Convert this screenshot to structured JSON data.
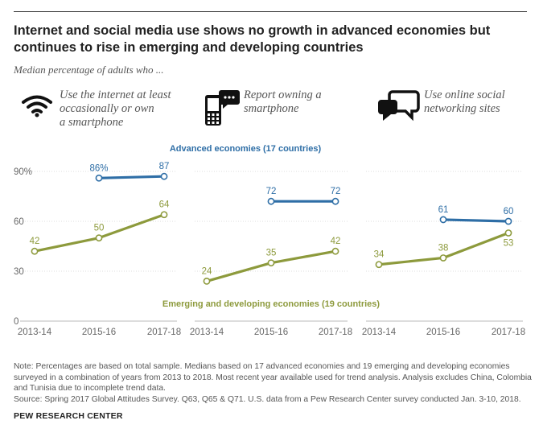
{
  "header": {
    "title_line1": "Internet and social media use shows no growth in advanced economies but",
    "title_line2": "continues to rise in emerging and developing countries",
    "subtitle": "Median percentage of adults who ..."
  },
  "panels": [
    {
      "label_lines": [
        "Use the internet at least",
        "occasionally or own",
        "a smartphone"
      ],
      "icon": "wifi-icon"
    },
    {
      "label_lines": [
        "Report owning a",
        "smartphone"
      ],
      "icon": "smartphone-icon"
    },
    {
      "label_lines": [
        "Use online social",
        "networking sites"
      ],
      "icon": "chat-bubbles-icon"
    }
  ],
  "chart_data": {
    "type": "line",
    "x_categories": [
      "2013-14",
      "2015-16",
      "2017-18"
    ],
    "y_ticks": [
      "90%",
      "60",
      "30",
      "0"
    ],
    "ylim": [
      0,
      90
    ],
    "grid": true,
    "series_labels": {
      "advanced": "Advanced economies (17 countries)",
      "emerging": "Emerging and developing economies (19 countries)"
    },
    "colors": {
      "advanced": "#2e6ea6",
      "emerging": "#8d9a3c"
    },
    "panels": [
      {
        "advanced": {
          "x": [
            "2015-16",
            "2017-18"
          ],
          "values": [
            86,
            87
          ],
          "labels": [
            "86%",
            "87"
          ]
        },
        "emerging": {
          "x": [
            "2013-14",
            "2015-16",
            "2017-18"
          ],
          "values": [
            42,
            50,
            64
          ],
          "labels": [
            "42",
            "50",
            "64"
          ]
        }
      },
      {
        "advanced": {
          "x": [
            "2015-16",
            "2017-18"
          ],
          "values": [
            72,
            72
          ],
          "labels": [
            "72",
            "72"
          ]
        },
        "emerging": {
          "x": [
            "2013-14",
            "2015-16",
            "2017-18"
          ],
          "values": [
            24,
            35,
            42
          ],
          "labels": [
            "24",
            "35",
            "42"
          ]
        }
      },
      {
        "advanced": {
          "x": [
            "2015-16",
            "2017-18"
          ],
          "values": [
            61,
            60
          ],
          "labels": [
            "61",
            "60"
          ]
        },
        "emerging": {
          "x": [
            "2013-14",
            "2015-16",
            "2017-18"
          ],
          "values": [
            34,
            38,
            53
          ],
          "labels": [
            "34",
            "38",
            "53"
          ]
        }
      }
    ]
  },
  "footer": {
    "note_lines": [
      "Note: Percentages are based on total sample. Medians based on 17 advanced economies and 19 emerging and developing economies",
      "surveyed in a combination of years from 2013 to 2018. Most recent year available used for trend analysis. Analysis excludes China, Colombia",
      "and Tunisia due to incomplete trend data."
    ],
    "source": "Source: Spring 2017 Global Attitudes Survey. Q63, Q65 & Q71. U.S. data from a Pew Research Center survey conducted Jan. 3-10, 2018.",
    "brand": "PEW RESEARCH CENTER"
  }
}
